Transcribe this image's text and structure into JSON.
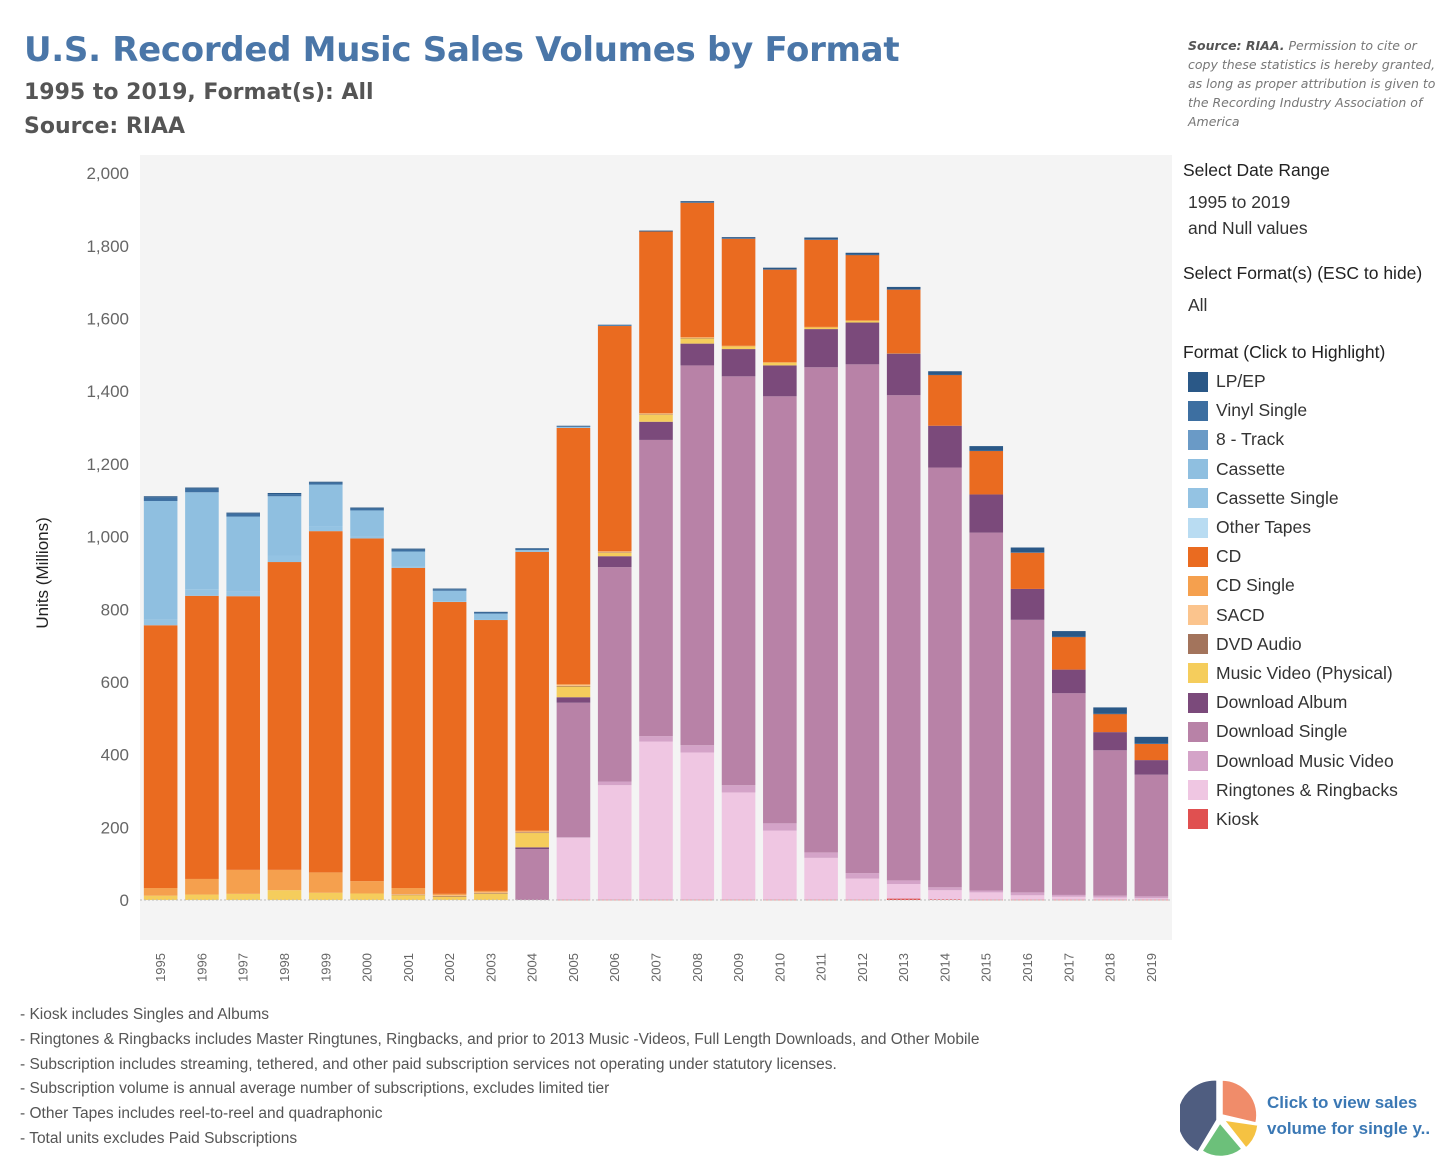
{
  "header": {
    "title": "U.S. Recorded Music Sales Volumes by Format",
    "subtitle": "1995 to 2019, Format(s): All",
    "source_line": "Source: RIAA"
  },
  "source_note": {
    "bold": "Source: RIAA.",
    "text": " Permission to cite or copy these statistics is hereby granted, as long as proper attribution is given to the Recording Industry Association of America"
  },
  "filters": {
    "date_range_title": "Select Date Range",
    "date_range_value": "1995 to 2019",
    "date_range_null": "and Null values",
    "format_title": "Select Format(s) (ESC to hide)",
    "format_value": "All"
  },
  "legend": {
    "title": "Format (Click to Highlight)",
    "items": [
      {
        "label": "LP/EP",
        "color": "#2a5887"
      },
      {
        "label": "Vinyl Single",
        "color": "#3d6fa1"
      },
      {
        "label": "8 - Track",
        "color": "#6a9ac6"
      },
      {
        "label": "Cassette",
        "color": "#8fbfe0"
      },
      {
        "label": "Cassette Single",
        "color": "#94c3e3"
      },
      {
        "label": "Other Tapes",
        "color": "#b9dcf2"
      },
      {
        "label": "CD",
        "color": "#ea6b20"
      },
      {
        "label": "CD Single",
        "color": "#f5a04e"
      },
      {
        "label": "SACD",
        "color": "#fbc48d"
      },
      {
        "label": "DVD Audio",
        "color": "#a3745c"
      },
      {
        "label": "Music Video (Physical)",
        "color": "#f5cd5c"
      },
      {
        "label": "Download Album",
        "color": "#7b4a7b"
      },
      {
        "label": "Download Single",
        "color": "#b882a7"
      },
      {
        "label": "Download Music Video",
        "color": "#d4a3c8"
      },
      {
        "label": "Ringtones & Ringbacks",
        "color": "#efc6e2"
      },
      {
        "label": "Kiosk",
        "color": "#e05050"
      }
    ]
  },
  "chart_data": {
    "type": "bar",
    "stacked": true,
    "title": "U.S. Recorded Music Sales Volumes by Format",
    "xlabel": "",
    "ylabel": "Units (Millions)",
    "ylim": [
      -110,
      2050
    ],
    "yticks": [
      0,
      200,
      400,
      600,
      800,
      1000,
      1200,
      1400,
      1600,
      1800,
      2000
    ],
    "ytick_labels": [
      "0",
      "200",
      "400",
      "600",
      "800",
      "1,000",
      "1,200",
      "1,400",
      "1,600",
      "1,800",
      "2,000"
    ],
    "categories": [
      "1995",
      "1996",
      "1997",
      "1998",
      "1999",
      "2000",
      "2001",
      "2002",
      "2003",
      "2004",
      "2005",
      "2006",
      "2007",
      "2008",
      "2009",
      "2010",
      "2011",
      "2012",
      "2013",
      "2014",
      "2015",
      "2016",
      "2017",
      "2018",
      "2019"
    ],
    "series": [
      {
        "name": "Kiosk",
        "values": [
          0,
          0,
          0,
          0,
          0,
          0,
          0,
          0,
          0,
          0,
          1,
          1,
          1,
          1,
          1,
          1,
          1,
          1,
          4,
          2,
          1,
          1,
          1,
          1,
          1
        ]
      },
      {
        "name": "Ringtones & Ringbacks",
        "values": [
          0,
          0,
          0,
          0,
          0,
          0,
          0,
          0,
          0,
          0,
          170,
          315,
          435,
          405,
          295,
          190,
          115,
          58,
          40,
          25,
          20,
          12,
          8,
          6,
          4
        ]
      },
      {
        "name": "Download Music Video",
        "values": [
          0,
          0,
          0,
          0,
          0,
          0,
          0,
          0,
          0,
          0,
          2,
          10,
          15,
          20,
          20,
          20,
          15,
          15,
          10,
          8,
          5,
          8,
          5,
          5,
          5
        ]
      },
      {
        "name": "Download Single",
        "values": [
          0,
          0,
          0,
          0,
          0,
          0,
          0,
          0,
          0,
          140,
          370,
          590,
          815,
          1045,
          1125,
          1175,
          1335,
          1400,
          1335,
          1155,
          985,
          750,
          555,
          400,
          335
        ]
      },
      {
        "name": "Download Album",
        "values": [
          0,
          0,
          0,
          0,
          0,
          0,
          0,
          0,
          0,
          5,
          15,
          30,
          50,
          60,
          75,
          85,
          105,
          115,
          115,
          115,
          105,
          85,
          65,
          50,
          40
        ]
      },
      {
        "name": "Music Video (Physical)",
        "values": [
          12,
          15,
          17,
          27,
          20,
          18,
          14,
          10,
          18,
          40,
          30,
          10,
          20,
          15,
          8,
          8,
          5,
          5,
          0,
          0,
          0,
          0,
          0,
          0,
          0
        ]
      },
      {
        "name": "DVD Audio",
        "values": [
          0,
          0,
          0,
          0,
          0,
          0,
          1,
          1,
          1,
          1,
          1,
          1,
          1,
          1,
          0,
          0,
          0,
          0,
          0,
          0,
          0,
          0,
          0,
          0,
          0
        ]
      },
      {
        "name": "SACD",
        "values": [
          0,
          0,
          0,
          0,
          0,
          0,
          1,
          2,
          2,
          2,
          2,
          1,
          1,
          1,
          0,
          0,
          0,
          0,
          0,
          0,
          0,
          0,
          0,
          0,
          0
        ]
      },
      {
        "name": "CD Single",
        "values": [
          21,
          43,
          66,
          56,
          56,
          34,
          17,
          4,
          4,
          3,
          3,
          2,
          2,
          1,
          1,
          1,
          1,
          1,
          1,
          0,
          0,
          0,
          0,
          0,
          0
        ]
      },
      {
        "name": "CD",
        "values": [
          723,
          779,
          753,
          847,
          939,
          943,
          881,
          803,
          746,
          767,
          705,
          620,
          500,
          370,
          295,
          255,
          240,
          180,
          175,
          140,
          120,
          100,
          90,
          50,
          45
        ]
      },
      {
        "name": "Other Tapes",
        "values": [
          0,
          0,
          0,
          0,
          0,
          0,
          0,
          0,
          0,
          0,
          0,
          0,
          0,
          0,
          0,
          0,
          0,
          0,
          0,
          0,
          0,
          0,
          0,
          0,
          0
        ]
      },
      {
        "name": "Cassette Single",
        "values": [
          15,
          18,
          12,
          18,
          14,
          5,
          5,
          2,
          1,
          0,
          0,
          0,
          0,
          0,
          0,
          0,
          0,
          0,
          0,
          0,
          0,
          0,
          0,
          0,
          0
        ]
      },
      {
        "name": "Cassette",
        "values": [
          327,
          267,
          207,
          163,
          114,
          72,
          40,
          29,
          16,
          5,
          3,
          1,
          0,
          0,
          0,
          0,
          0,
          0,
          0,
          0,
          0,
          0,
          0,
          0,
          0
        ]
      },
      {
        "name": "8 - Track",
        "values": [
          0,
          0,
          0,
          0,
          0,
          0,
          0,
          0,
          0,
          0,
          0,
          0,
          0,
          0,
          0,
          0,
          0,
          0,
          0,
          0,
          0,
          0,
          0,
          0,
          0
        ]
      },
      {
        "name": "Vinyl Single",
        "values": [
          10,
          10,
          8,
          6,
          5,
          5,
          5,
          4,
          3,
          3,
          2,
          1,
          1,
          1,
          1,
          1,
          1,
          1,
          1,
          1,
          1,
          1,
          1,
          1,
          1
        ]
      },
      {
        "name": "LP/EP",
        "values": [
          3,
          3,
          3,
          3,
          3,
          3,
          3,
          2,
          2,
          2,
          1,
          1,
          1,
          3,
          3,
          4,
          5,
          5,
          6,
          9,
          12,
          13,
          15,
          17,
          18
        ]
      }
    ]
  },
  "footnotes": [
    "- Kiosk includes Singles and Albums",
    "- Ringtones & Ringbacks includes Master Ringtunes, Ringbacks, and prior to 2013 Music -Videos, Full Length Downloads, and Other Mobile",
    "- Subscription includes streaming, tethered, and other paid subscription services not operating under statutory licenses.",
    "- Subscription volume is annual average number of subscriptions, excludes limited tier",
    "- Other Tapes includes reel-to-reel and quadraphonic",
    "- Total units excludes Paid Subscriptions"
  ],
  "pie_link": {
    "line1": "Click to view sales",
    "line2": "volume for single y..",
    "colors": [
      "#f08c6a",
      "#f5c242",
      "#6cc07a",
      "#4f5d80"
    ]
  }
}
